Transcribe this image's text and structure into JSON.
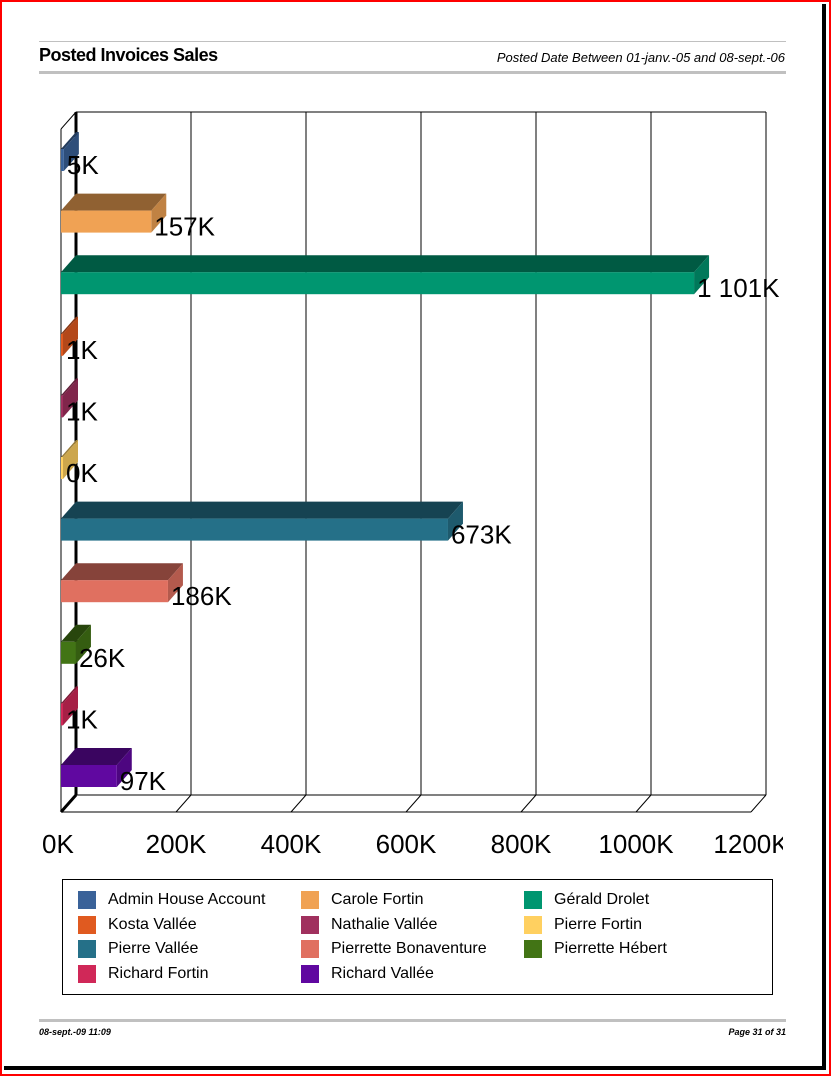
{
  "header": {
    "title": "Posted Invoices Sales",
    "subtitle": "Posted Date Between 01-janv.-05 and 08-sept.-06"
  },
  "footer": {
    "timestamp": "08-sept.-09  11:09",
    "page": "Page 31 of 31"
  },
  "chart_data": {
    "type": "bar",
    "orientation": "horizontal",
    "style": "3d",
    "categories": [
      "Admin House Account",
      "Carole Fortin",
      "Gérald Drolet",
      "Kosta Vallée",
      "Nathalie Vallée",
      "Pierre Fortin",
      "Pierre Vallée",
      "Pierrette Bonaventure",
      "Pierrette Hébert",
      "Richard Fortin",
      "Richard Vallée"
    ],
    "values": [
      5,
      157,
      1101,
      1,
      1,
      0,
      673,
      186,
      26,
      1,
      97
    ],
    "data_labels": [
      "5K",
      "157K",
      "1 101K",
      "1K",
      "1K",
      "0K",
      "673K",
      "186K",
      "26K",
      "1K",
      "97K"
    ],
    "colors": [
      "#3a6299",
      "#f0a254",
      "#009670",
      "#e05a20",
      "#a0305e",
      "#ffd060",
      "#257088",
      "#e07060",
      "#427415",
      "#d02858",
      "#6008a0"
    ],
    "xlim": [
      0,
      1200
    ],
    "xticks": [
      "0K",
      "200K",
      "400K",
      "600K",
      "800K",
      "1000K",
      "1200K"
    ],
    "unit": "K",
    "grid": true,
    "legend_position": "bottom"
  }
}
